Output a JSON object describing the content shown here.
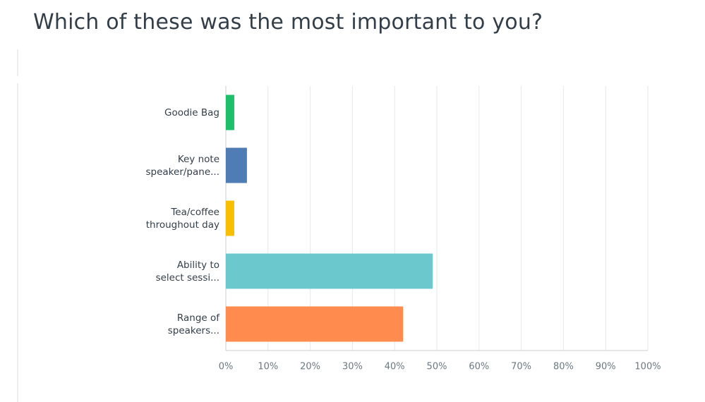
{
  "chart_data": {
    "type": "bar",
    "orientation": "horizontal",
    "title": "Which of these was the most important to you?",
    "categories": [
      "Goodie Bag",
      "Key note\nspeaker/pane...",
      "Tea/coffee\nthroughout day",
      "Ability to\nselect sessi...",
      "Range of\nspeakers..."
    ],
    "values": [
      2,
      5,
      2,
      49,
      42
    ],
    "colors": [
      "#1dbf6b",
      "#507cb6",
      "#f8bf00",
      "#6bc8cd",
      "#ff8b4f"
    ],
    "xlim": [
      0,
      100
    ],
    "xticks": [
      {
        "value": 0,
        "label": "0%"
      },
      {
        "value": 10,
        "label": "10%"
      },
      {
        "value": 20,
        "label": "20%"
      },
      {
        "value": 30,
        "label": "30%"
      },
      {
        "value": 40,
        "label": "40%"
      },
      {
        "value": 50,
        "label": "50%"
      },
      {
        "value": 60,
        "label": "60%"
      },
      {
        "value": 70,
        "label": "70%"
      },
      {
        "value": 80,
        "label": "80%"
      },
      {
        "value": 90,
        "label": "90%"
      },
      {
        "value": 100,
        "label": "100%"
      }
    ],
    "grid": true
  }
}
